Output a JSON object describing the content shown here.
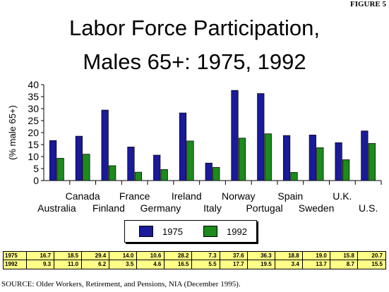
{
  "figure_label": "FIGURE 5",
  "source": "SOURCE: Older Workers, Retirement, and Pensions, NIA (December 1995).",
  "colors": {
    "series_1975": "#1a1a9a",
    "series_1992": "#1c8a1c",
    "table_bg": "#ffff88"
  },
  "chart_data": {
    "type": "bar",
    "title_lines": [
      "Labor Force Participation,",
      "Males 65+: 1975, 1992"
    ],
    "ylabel": "(% male 65+)",
    "xlabel": "",
    "ylim": [
      0,
      40
    ],
    "yticks": [
      0,
      5,
      10,
      15,
      20,
      25,
      30,
      35,
      40
    ],
    "grid": false,
    "legend_position": "bottom-center",
    "categories": [
      "Australia",
      "Canada",
      "Finland",
      "France",
      "Germany",
      "Ireland",
      "Italy",
      "Norway",
      "Portugal",
      "Spain",
      "Sweden",
      "U.K.",
      "U.S."
    ],
    "series": [
      {
        "name": "1975",
        "values": [
          16.7,
          18.5,
          29.4,
          14.0,
          10.6,
          28.2,
          7.3,
          37.6,
          36.3,
          18.8,
          19.0,
          15.8,
          20.7
        ]
      },
      {
        "name": "1992",
        "values": [
          9.3,
          11.0,
          6.2,
          3.5,
          4.6,
          16.5,
          5.5,
          17.7,
          19.5,
          3.4,
          13.7,
          8.7,
          15.5
        ]
      }
    ]
  },
  "table": {
    "rows": [
      {
        "label": "1975",
        "values": [
          "16.7",
          "18.5",
          "29.4",
          "14.0",
          "10.6",
          "28.2",
          "7.3",
          "37.6",
          "36.3",
          "18.8",
          "19.0",
          "15.8",
          "20.7"
        ]
      },
      {
        "label": "1992",
        "values": [
          "9.3",
          "11.0",
          "6.2",
          "3.5",
          "4.6",
          "16.5",
          "5.5",
          "17.7",
          "19.5",
          "3.4",
          "13.7",
          "8.7",
          "15.5"
        ]
      }
    ]
  }
}
